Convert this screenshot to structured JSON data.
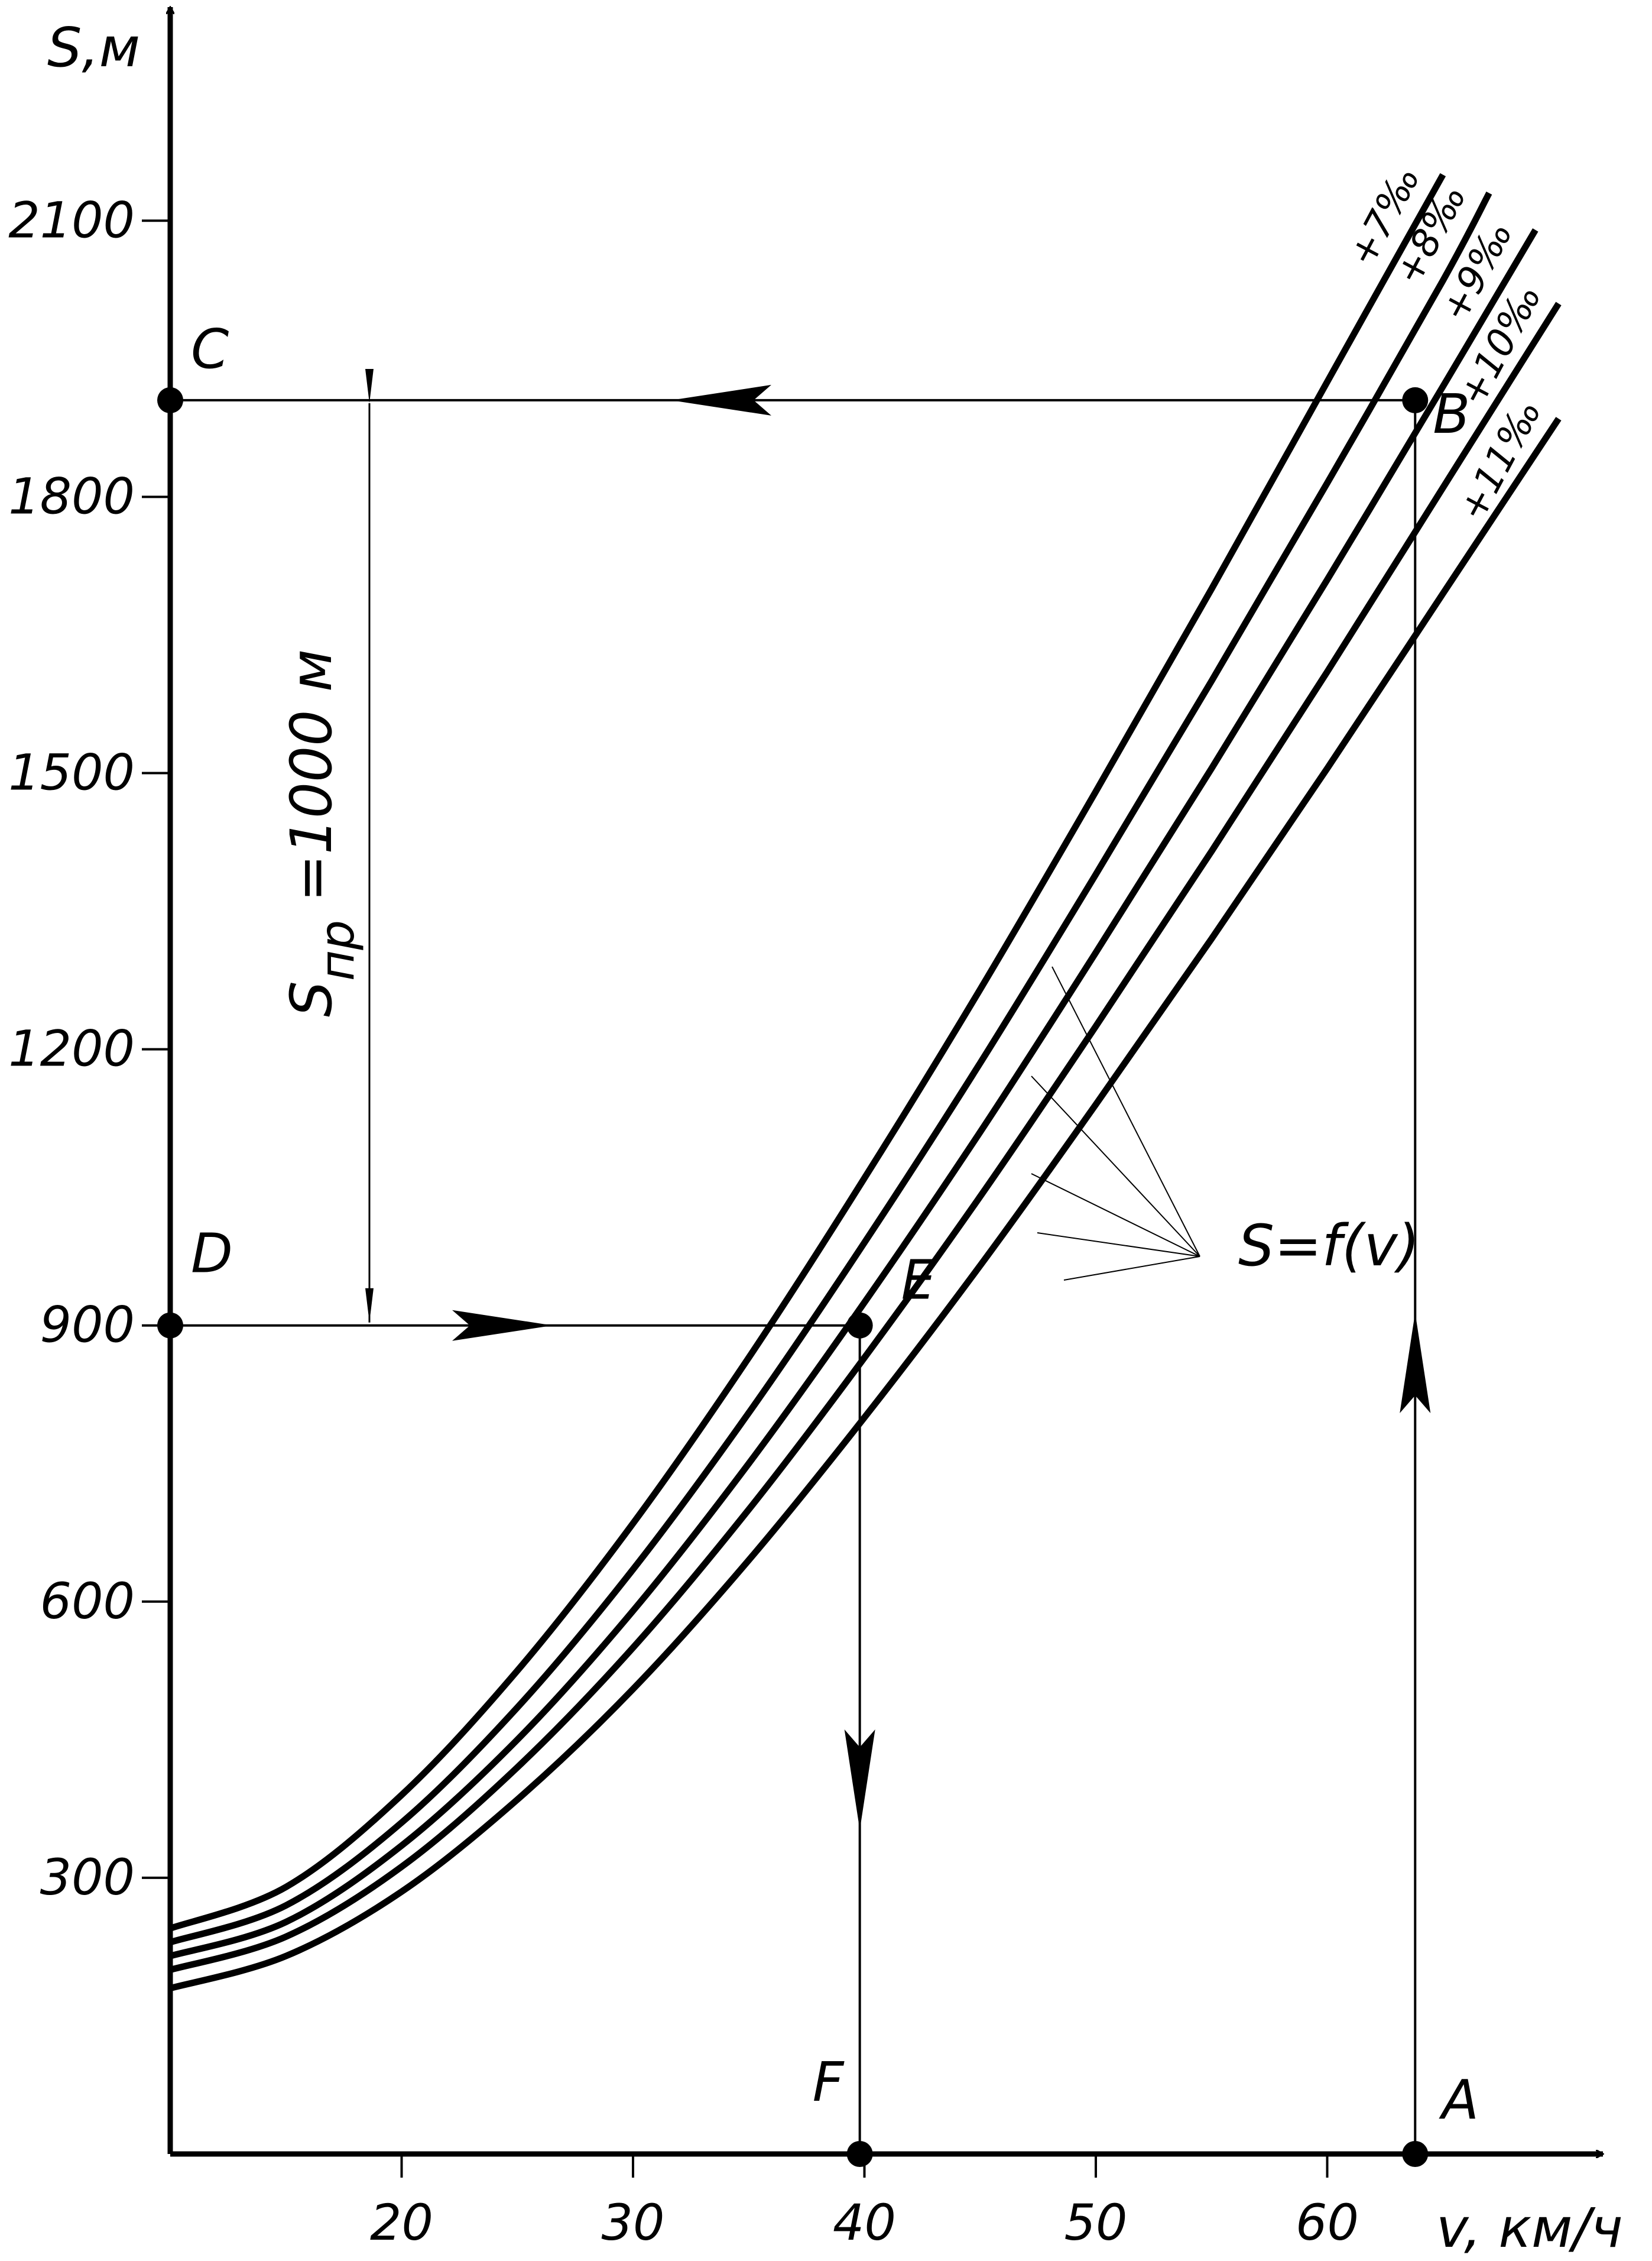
{
  "chart_data": {
    "type": "line",
    "xlabel": "v, км/ч",
    "ylabel": "S,м",
    "x_ticks": [
      20,
      30,
      40,
      50,
      60
    ],
    "y_ticks": [
      300,
      600,
      900,
      1200,
      1500,
      1800,
      2100
    ],
    "xlim": [
      10,
      70
    ],
    "ylim": [
      0,
      2330
    ],
    "grid": false,
    "legend": "none",
    "function_label": "S=f(v)",
    "dimension_label": {
      "main": "S",
      "sub": "пр",
      "tail": " =1000 м"
    },
    "series": [
      {
        "name": "+7‰",
        "x": [
          10,
          15,
          20,
          25,
          30,
          35,
          40,
          45,
          50,
          55,
          60,
          65
        ],
        "y": [
          245,
          290,
          390,
          525,
          685,
          865,
          1060,
          1265,
          1480,
          1700,
          1925,
          2150
        ]
      },
      {
        "name": "+8‰",
        "x": [
          10,
          15,
          20,
          25,
          30,
          35,
          40,
          45,
          50,
          55,
          60,
          65,
          67
        ],
        "y": [
          230,
          270,
          360,
          485,
          635,
          805,
          990,
          1185,
          1390,
          1600,
          1815,
          2035,
          2130
        ]
      },
      {
        "name": "+9‰",
        "x": [
          10,
          15,
          20,
          25,
          30,
          35,
          40,
          45,
          50,
          55,
          60,
          65,
          69
        ],
        "y": [
          215,
          252,
          335,
          450,
          590,
          750,
          925,
          1110,
          1305,
          1505,
          1710,
          1920,
          2090
        ]
      },
      {
        "name": "+10‰",
        "x": [
          10,
          15,
          20,
          25,
          30,
          35,
          40,
          45,
          50,
          55,
          60,
          65,
          70
        ],
        "y": [
          200,
          236,
          312,
          420,
          550,
          700,
          865,
          1040,
          1225,
          1415,
          1610,
          1810,
          2010
        ]
      },
      {
        "name": "+11‰",
        "x": [
          10,
          15,
          20,
          25,
          30,
          35,
          40,
          45,
          50,
          55,
          60,
          65,
          70
        ],
        "y": [
          180,
          215,
          285,
          385,
          505,
          645,
          800,
          965,
          1140,
          1320,
          1505,
          1695,
          1885
        ]
      }
    ],
    "points": [
      {
        "label": "A",
        "x": 63.8,
        "y": 0
      },
      {
        "label": "B",
        "x": 63.8,
        "y": 1905
      },
      {
        "label": "C",
        "x": 10,
        "y": 1905
      },
      {
        "label": "D",
        "x": 10,
        "y": 900
      },
      {
        "label": "E",
        "x": 39.8,
        "y": 900
      },
      {
        "label": "F",
        "x": 39.8,
        "y": 0
      }
    ]
  }
}
